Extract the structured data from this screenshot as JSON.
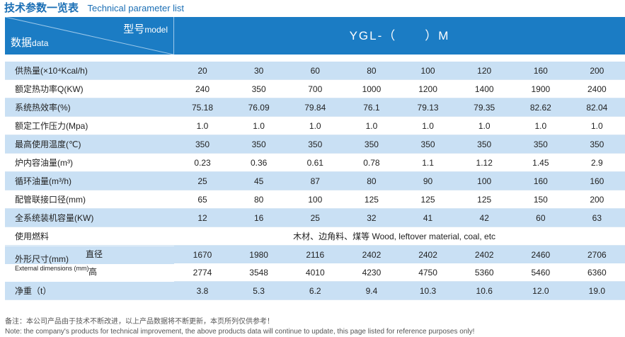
{
  "title": {
    "cn": "技术参数一览表",
    "en": "Technical parameter list"
  },
  "header": {
    "model_cn": "型号",
    "model_en": "model",
    "data_cn": "数据",
    "data_en": "data",
    "model_name_prefix": "YGL-（",
    "model_name_suffix": "）M"
  },
  "rows": [
    {
      "label": "供热量(×10⁴Kcal/h)",
      "values": [
        "20",
        "30",
        "60",
        "80",
        "100",
        "120",
        "160",
        "200"
      ]
    },
    {
      "label": "额定热功率Q(KW)",
      "values": [
        "240",
        "350",
        "700",
        "1000",
        "1200",
        "1400",
        "1900",
        "2400"
      ]
    },
    {
      "label": "系统热效率(%)",
      "values": [
        "75.18",
        "76.09",
        "79.84",
        "76.1",
        "79.13",
        "79.35",
        "82.62",
        "82.04"
      ]
    },
    {
      "label": "额定工作压力(Mpa)",
      "values": [
        "1.0",
        "1.0",
        "1.0",
        "1.0",
        "1.0",
        "1.0",
        "1.0",
        "1.0"
      ]
    },
    {
      "label": "最高使用温度(℃)",
      "values": [
        "350",
        "350",
        "350",
        "350",
        "350",
        "350",
        "350",
        "350"
      ]
    },
    {
      "label": "炉内容油量(m³)",
      "values": [
        "0.23",
        "0.36",
        "0.61",
        "0.78",
        "1.1",
        "1.12",
        "1.45",
        "2.9"
      ]
    },
    {
      "label": "循环油量(m³/h)",
      "values": [
        "25",
        "45",
        "87",
        "80",
        "90",
        "100",
        "160",
        "160"
      ]
    },
    {
      "label": "配管联接口径(mm)",
      "values": [
        "65",
        "80",
        "100",
        "125",
        "125",
        "125",
        "150",
        "200"
      ]
    },
    {
      "label": "全系统装机容量(KW)",
      "values": [
        "12",
        "16",
        "25",
        "32",
        "41",
        "42",
        "60",
        "63"
      ]
    }
  ],
  "fuel": {
    "label": "使用燃料",
    "value": "木材、边角料、煤等 Wood, leftover material, coal, etc"
  },
  "dimensions": {
    "label_cn": "外形尺寸(mm)",
    "label_en": "External dimensions (mm)",
    "diameter_label": "直径",
    "diameter_values": [
      "1670",
      "1980",
      "2116",
      "2402",
      "2402",
      "2402",
      "2460",
      "2706"
    ],
    "height_label": "高",
    "height_values": [
      "2774",
      "3548",
      "4010",
      "4230",
      "4750",
      "5360",
      "5460",
      "6360"
    ]
  },
  "weight": {
    "label": "净重（t）",
    "values": [
      "3.8",
      "5.3",
      "6.2",
      "9.4",
      "10.3",
      "10.6",
      "12.0",
      "19.0"
    ]
  },
  "notes": {
    "cn": "备注：本公司产品由于技术不断改进，以上产品数据将不断更新，本页所列仅供参考！",
    "en": "Note: the company's products for technical improvement, the above products data will continue to update, this page listed for reference purposes only!"
  }
}
